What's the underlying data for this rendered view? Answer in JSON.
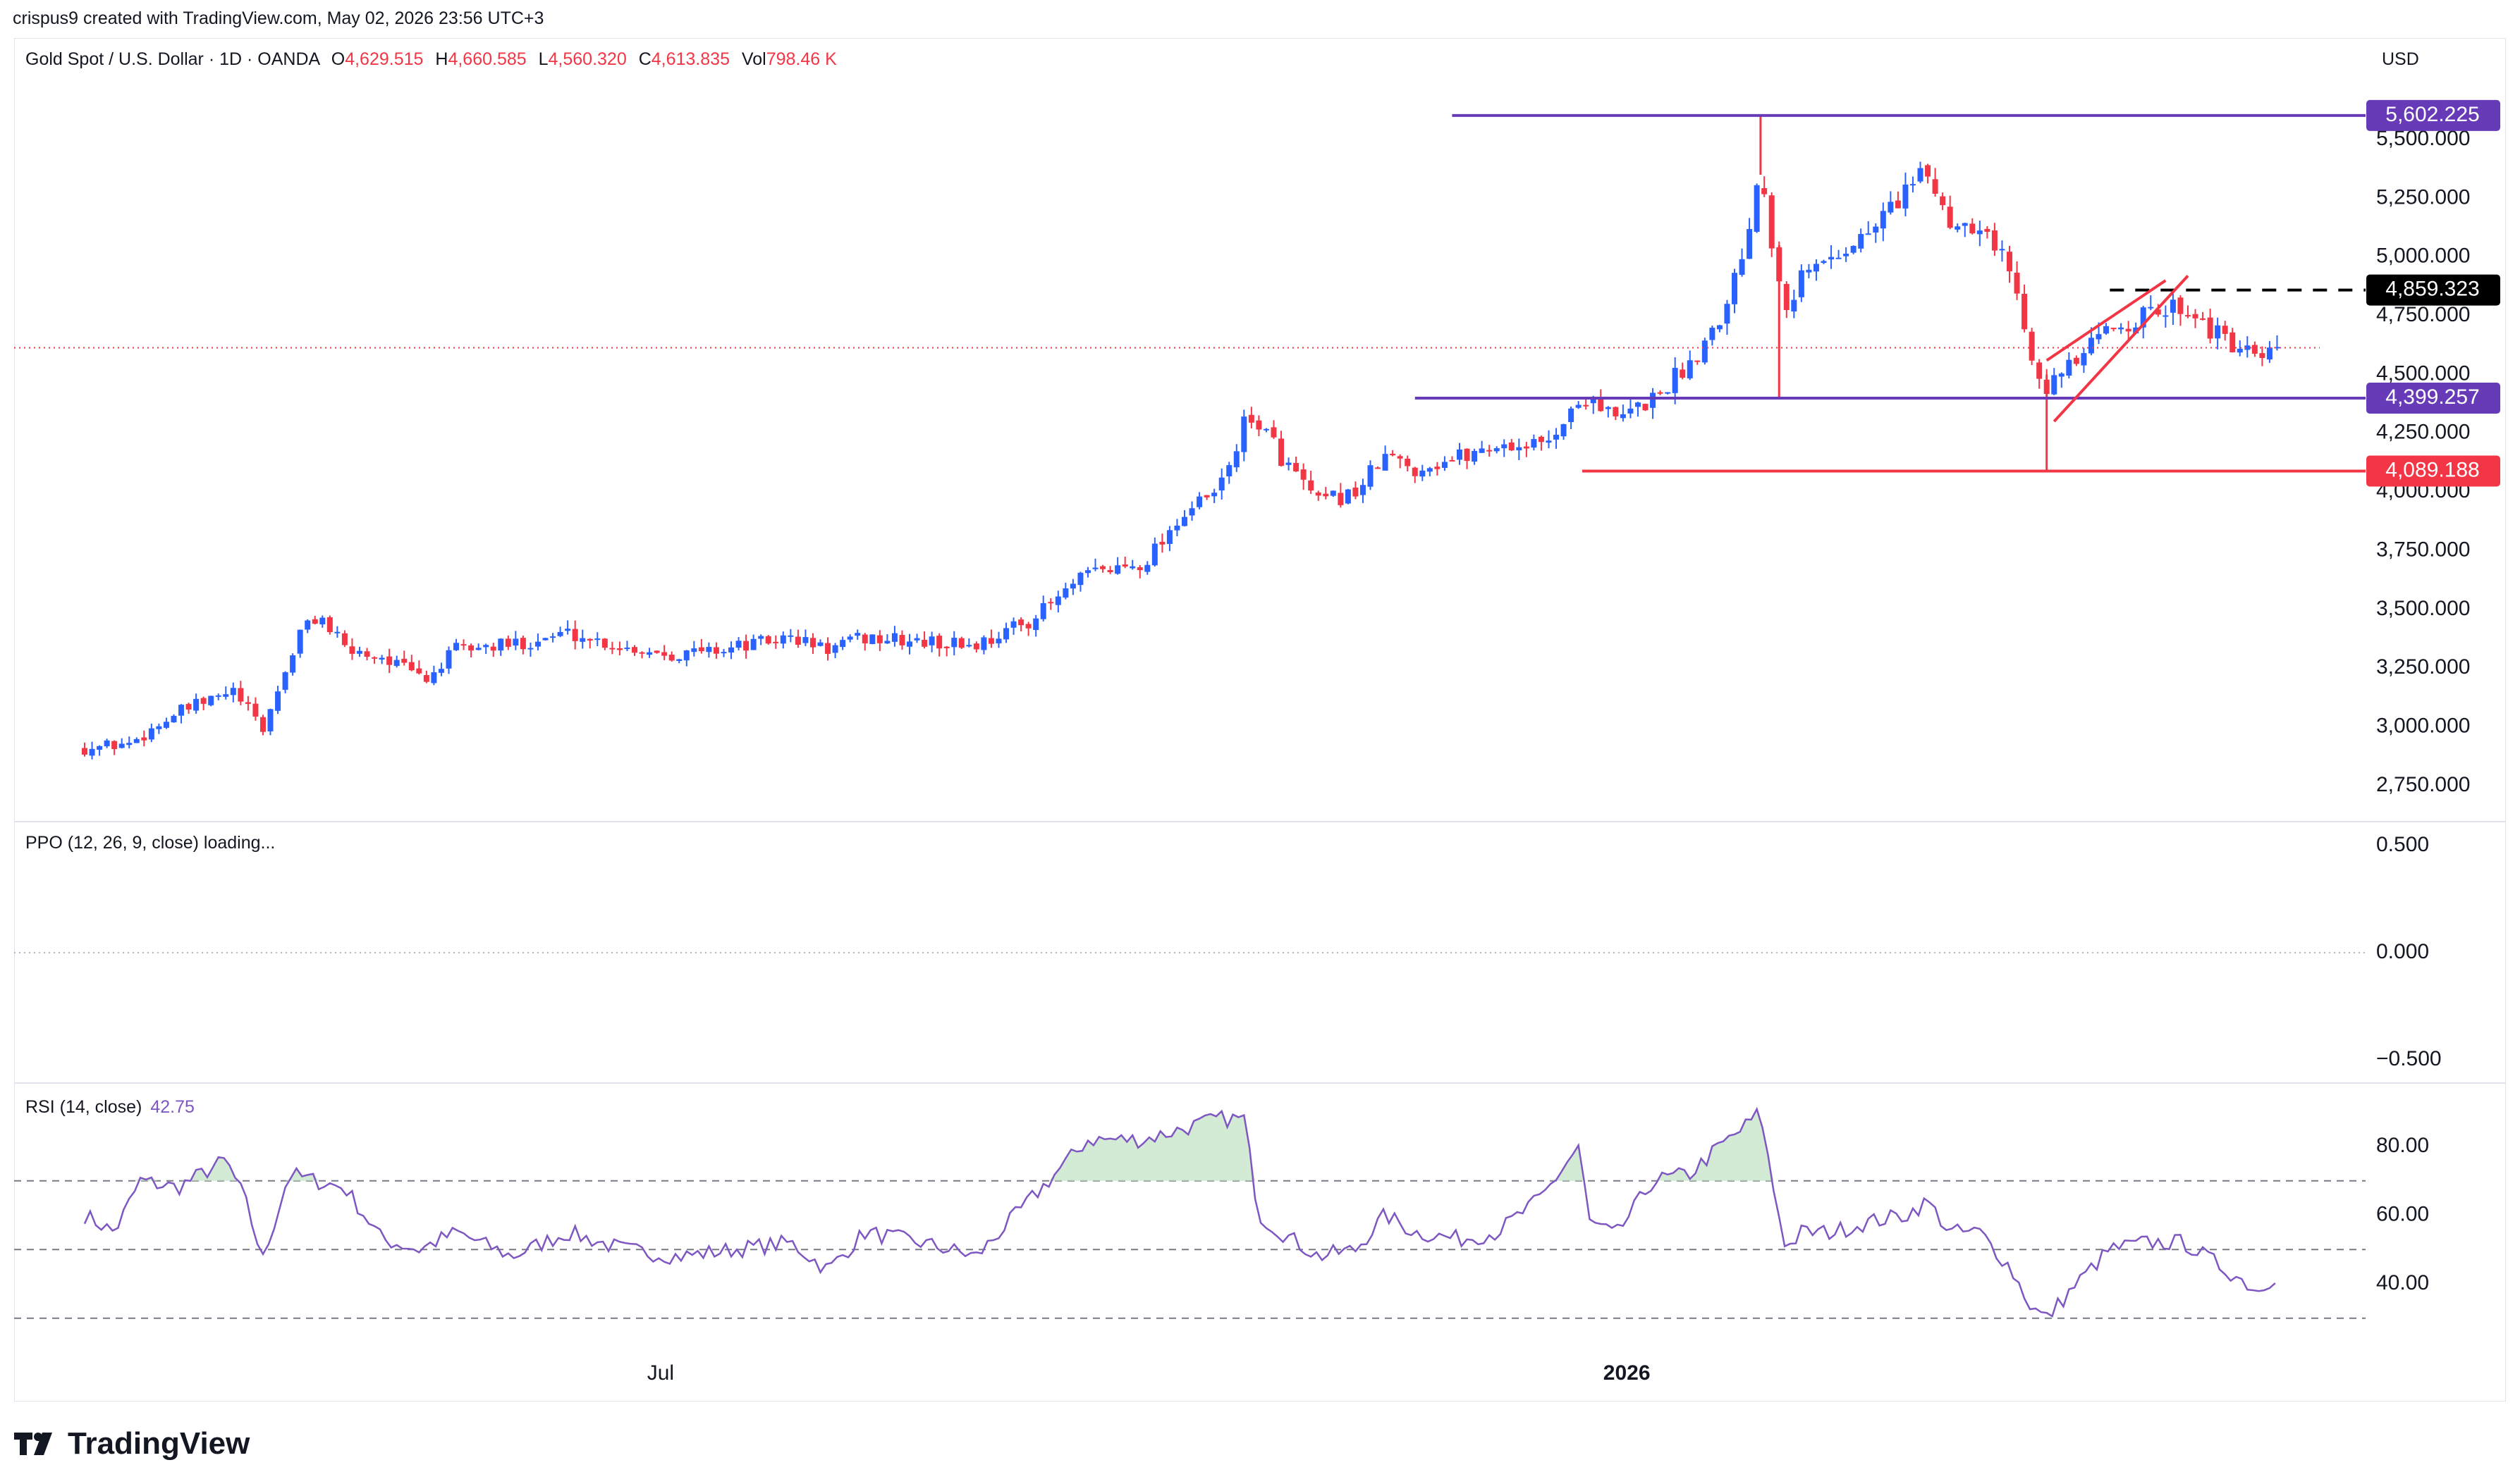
{
  "header": {
    "credit": "crispus9 created with TradingView.com, May 02, 2026 23:56 UTC+3"
  },
  "legend": {
    "symbol": "Gold Spot / U.S. Dollar · 1D · OANDA",
    "open_label": "O",
    "open": "4,629.515",
    "high_label": "H",
    "high": "4,660.585",
    "low_label": "L",
    "low": "4,560.320",
    "close_label": "C",
    "close": "4,613.835",
    "vol_label": "Vol",
    "vol": "798.46 K"
  },
  "currency": "USD",
  "price_axis": {
    "ticks": [
      "5,500.000",
      "5,250.000",
      "5,000.000",
      "4,750.000",
      "4,500.000",
      "4,250.000",
      "4,000.000",
      "3,750.000",
      "3,500.000",
      "3,250.000",
      "3,000.000",
      "2,750.000"
    ]
  },
  "time_axis": {
    "labels": [
      "Jul",
      "2026"
    ]
  },
  "price_levels": [
    {
      "value": "5,602.225",
      "color": "#673ab7"
    },
    {
      "value": "4,859.323",
      "color": "#000000"
    },
    {
      "value": "4,399.257",
      "color": "#673ab7"
    },
    {
      "value": "4,089.188",
      "color": "#f23645"
    }
  ],
  "ppo": {
    "label": "PPO (12, 26, 9, close) loading...",
    "ticks": [
      "0.500",
      "0.000",
      "−0.500"
    ]
  },
  "rsi": {
    "label": "RSI (14, close)",
    "value": "42.75",
    "ticks": [
      "80.00",
      "60.00",
      "40.00"
    ]
  },
  "brand": {
    "name": "TradingView"
  },
  "colors": {
    "up": "#2962ff",
    "down": "#f23645",
    "rsi_line": "#7e57c2",
    "level_purple": "#673ab7",
    "level_red": "#f23645"
  },
  "chart_data": {
    "type": "candlestick",
    "title": "Gold Spot / U.S. Dollar · 1D · OANDA",
    "x_labels": [
      "Jul",
      "2026"
    ],
    "y_axis": "USD",
    "ylim": [
      2650,
      5650
    ],
    "price_levels": [
      5602.225,
      4859.323,
      4399.257,
      4089.188
    ],
    "last_close": 4613.835,
    "close_path": [
      [
        0,
        2910
      ],
      [
        12,
        2930
      ],
      [
        25,
        3060
      ],
      [
        40,
        3150
      ],
      [
        48,
        2990
      ],
      [
        58,
        3400
      ],
      [
        63,
        3480
      ],
      [
        70,
        3330
      ],
      [
        80,
        3300
      ],
      [
        92,
        3200
      ],
      [
        100,
        3330
      ],
      [
        115,
        3350
      ],
      [
        130,
        3400
      ],
      [
        145,
        3340
      ],
      [
        160,
        3310
      ],
      [
        175,
        3340
      ],
      [
        190,
        3380
      ],
      [
        200,
        3330
      ],
      [
        210,
        3380
      ],
      [
        225,
        3360
      ],
      [
        240,
        3350
      ],
      [
        255,
        3460
      ],
      [
        270,
        3650
      ],
      [
        285,
        3700
      ],
      [
        295,
        3900
      ],
      [
        305,
        4000
      ],
      [
        312,
        4280
      ],
      [
        316,
        4300
      ],
      [
        322,
        4150
      ],
      [
        332,
        3950
      ],
      [
        342,
        4000
      ],
      [
        350,
        4150
      ],
      [
        358,
        4100
      ],
      [
        370,
        4150
      ],
      [
        380,
        4200
      ],
      [
        392,
        4200
      ],
      [
        405,
        4420
      ],
      [
        412,
        4300
      ],
      [
        422,
        4400
      ],
      [
        432,
        4550
      ],
      [
        440,
        4750
      ],
      [
        446,
        5000
      ],
      [
        451,
        5400
      ],
      [
        454,
        5080
      ],
      [
        458,
        4800
      ],
      [
        462,
        4920
      ],
      [
        470,
        5000
      ],
      [
        480,
        5100
      ],
      [
        490,
        5290
      ],
      [
        496,
        5350
      ],
      [
        502,
        5150
      ],
      [
        510,
        5150
      ],
      [
        518,
        4950
      ],
      [
        524,
        4600
      ],
      [
        528,
        4450
      ],
      [
        536,
        4550
      ],
      [
        545,
        4700
      ],
      [
        555,
        4750
      ],
      [
        565,
        4800
      ],
      [
        575,
        4650
      ],
      [
        585,
        4550
      ],
      [
        590,
        4600
      ]
    ],
    "rsi": {
      "levels": [
        70,
        50,
        30
      ],
      "ticks": [
        80,
        60,
        40
      ],
      "last": 42.75,
      "path": [
        [
          0,
          60
        ],
        [
          8,
          55
        ],
        [
          15,
          70
        ],
        [
          25,
          68
        ],
        [
          38,
          76
        ],
        [
          43,
          65
        ],
        [
          48,
          47
        ],
        [
          55,
          72
        ],
        [
          62,
          70
        ],
        [
          70,
          68
        ],
        [
          80,
          53
        ],
        [
          90,
          50
        ],
        [
          100,
          55
        ],
        [
          115,
          48
        ],
        [
          130,
          55
        ],
        [
          145,
          50
        ],
        [
          160,
          48
        ],
        [
          175,
          50
        ],
        [
          190,
          52
        ],
        [
          200,
          44
        ],
        [
          210,
          55
        ],
        [
          225,
          52
        ],
        [
          240,
          48
        ],
        [
          255,
          65
        ],
        [
          270,
          82
        ],
        [
          285,
          82
        ],
        [
          295,
          85
        ],
        [
          305,
          88
        ],
        [
          312,
          88
        ],
        [
          316,
          60
        ],
        [
          322,
          55
        ],
        [
          332,
          48
        ],
        [
          342,
          50
        ],
        [
          350,
          60
        ],
        [
          358,
          55
        ],
        [
          370,
          53
        ],
        [
          380,
          55
        ],
        [
          392,
          65
        ],
        [
          402,
          80
        ],
        [
          405,
          58
        ],
        [
          412,
          54
        ],
        [
          422,
          70
        ],
        [
          432,
          72
        ],
        [
          440,
          80
        ],
        [
          446,
          85
        ],
        [
          451,
          90
        ],
        [
          454,
          70
        ],
        [
          458,
          50
        ],
        [
          462,
          55
        ],
        [
          470,
          55
        ],
        [
          480,
          58
        ],
        [
          490,
          60
        ],
        [
          496,
          64
        ],
        [
          502,
          55
        ],
        [
          510,
          55
        ],
        [
          518,
          45
        ],
        [
          524,
          33
        ],
        [
          528,
          30
        ],
        [
          536,
          40
        ],
        [
          545,
          50
        ],
        [
          555,
          52
        ],
        [
          565,
          52
        ],
        [
          575,
          45
        ],
        [
          585,
          38
        ],
        [
          590,
          43
        ]
      ]
    },
    "ppo": {
      "ylim": [
        -0.5,
        0.5
      ],
      "status": "loading"
    }
  }
}
